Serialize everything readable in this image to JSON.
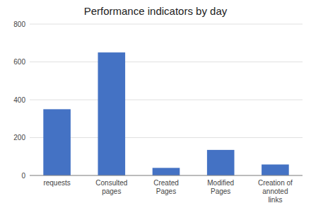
{
  "chart_data": {
    "type": "bar",
    "title": "Performance indicators by day",
    "categories": [
      "requests",
      "Consulted\npages",
      "Created\nPages",
      "Modified\nPages",
      "Creation of\nannoted\nlinks"
    ],
    "values": [
      350,
      650,
      40,
      135,
      58
    ],
    "color": "#4472C4",
    "ylim": [
      0,
      800
    ],
    "yticks": [
      0,
      200,
      400,
      600,
      800
    ],
    "grid": true
  }
}
